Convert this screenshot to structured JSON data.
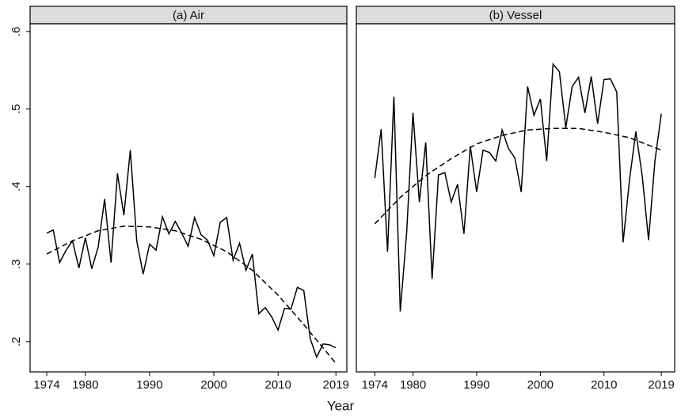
{
  "chart_data": [
    {
      "type": "line",
      "title": "(a) Air",
      "x": [
        1974,
        1975,
        1976,
        1977,
        1978,
        1979,
        1980,
        1981,
        1982,
        1983,
        1984,
        1985,
        1986,
        1987,
        1988,
        1989,
        1990,
        1991,
        1992,
        1993,
        1994,
        1995,
        1996,
        1997,
        1998,
        1999,
        2000,
        2001,
        2002,
        2003,
        2004,
        2005,
        2006,
        2007,
        2008,
        2009,
        2010,
        2011,
        2012,
        2013,
        2014,
        2015,
        2016,
        2017,
        2018,
        2019
      ],
      "series": [
        {
          "color": "#000000",
          "values": [
            0.34,
            0.344,
            0.302,
            0.318,
            0.33,
            0.295,
            0.334,
            0.294,
            0.322,
            0.384,
            0.302,
            0.417,
            0.363,
            0.447,
            0.33,
            0.287,
            0.326,
            0.318,
            0.361,
            0.339,
            0.355,
            0.34,
            0.323,
            0.36,
            0.338,
            0.331,
            0.311,
            0.354,
            0.36,
            0.305,
            0.327,
            0.292,
            0.313,
            0.236,
            0.244,
            0.232,
            0.215,
            0.243,
            0.242,
            0.27,
            0.266,
            0.204,
            0.18,
            0.197,
            0.196,
            0.192
          ]
        },
        {
          "color": "#000000",
          "dashed": true,
          "x": [
            1974,
            1978,
            1982,
            1986,
            1990,
            1994,
            1998,
            2002,
            2006,
            2010,
            2014,
            2019
          ],
          "values": [
            0.313,
            0.33,
            0.343,
            0.349,
            0.348,
            0.343,
            0.332,
            0.316,
            0.292,
            0.26,
            0.222,
            0.172
          ]
        }
      ],
      "xlim": [
        1971.4,
        2020.7
      ],
      "xticks": [
        1974,
        1980,
        1990,
        2000,
        2010,
        2019
      ],
      "ylim": [
        0.161,
        0.61
      ],
      "yticks": [
        {
          "value": 0.2,
          "label": ".2"
        },
        {
          "value": 0.3,
          "label": ".3"
        },
        {
          "value": 0.4,
          "label": ".4"
        },
        {
          "value": 0.5,
          "label": ".5"
        },
        {
          "value": 0.6,
          "label": ".6"
        }
      ]
    },
    {
      "type": "line",
      "title": "(b) Vessel",
      "x": [
        1974,
        1975,
        1976,
        1977,
        1978,
        1979,
        1980,
        1981,
        1982,
        1983,
        1984,
        1985,
        1986,
        1987,
        1988,
        1989,
        1990,
        1991,
        1992,
        1993,
        1994,
        1995,
        1996,
        1997,
        1998,
        1999,
        2000,
        2001,
        2002,
        2003,
        2004,
        2005,
        2006,
        2007,
        2008,
        2009,
        2010,
        2011,
        2012,
        2013,
        2014,
        2015,
        2016,
        2017,
        2018,
        2019
      ],
      "series": [
        {
          "color": "#000000",
          "values": [
            0.411,
            0.474,
            0.316,
            0.516,
            0.239,
            0.34,
            0.495,
            0.38,
            0.457,
            0.281,
            0.415,
            0.418,
            0.38,
            0.403,
            0.339,
            0.452,
            0.393,
            0.447,
            0.444,
            0.433,
            0.473,
            0.449,
            0.437,
            0.393,
            0.529,
            0.492,
            0.513,
            0.433,
            0.558,
            0.548,
            0.476,
            0.529,
            0.541,
            0.495,
            0.542,
            0.481,
            0.538,
            0.539,
            0.522,
            0.328,
            0.408,
            0.471,
            0.414,
            0.331,
            0.433,
            0.494
          ]
        },
        {
          "color": "#000000",
          "dashed": true,
          "x": [
            1974,
            1978,
            1982,
            1986,
            1990,
            1994,
            1998,
            2002,
            2006,
            2010,
            2014,
            2019
          ],
          "values": [
            0.352,
            0.386,
            0.414,
            0.436,
            0.455,
            0.466,
            0.473,
            0.475,
            0.475,
            0.47,
            0.463,
            0.447
          ]
        }
      ],
      "xlim": [
        1971.1,
        2021.1
      ],
      "xticks": [
        1974,
        1980,
        1990,
        2000,
        2010,
        2019
      ],
      "ylim": [
        0.161,
        0.61
      ]
    }
  ],
  "xlabel": "Year"
}
